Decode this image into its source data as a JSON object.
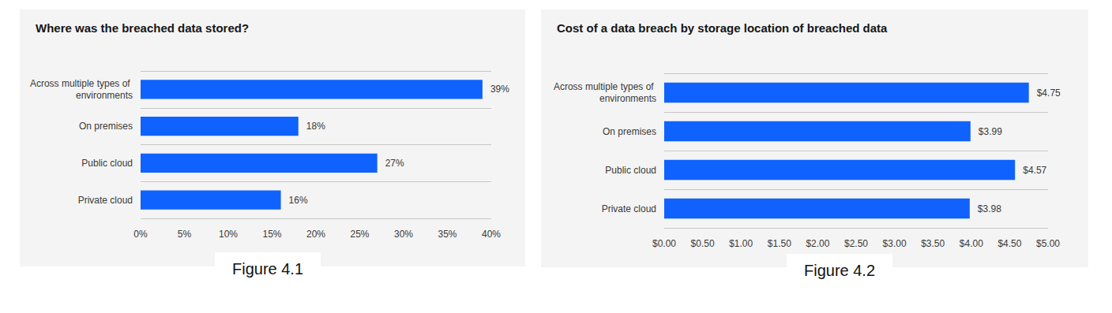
{
  "chart_data": [
    {
      "type": "bar",
      "title": "Where was the breached data stored?",
      "caption": "Figure 4.1",
      "orientation": "horizontal",
      "categories": [
        "Across multiple types of environments",
        "On premises",
        "Public cloud",
        "Private cloud"
      ],
      "values": [
        39,
        18,
        27,
        16
      ],
      "value_labels": [
        "39%",
        "18%",
        "27%",
        "16%"
      ],
      "data_labels": true,
      "color": "#0f62fe",
      "grid": true,
      "xlim": [
        0,
        40
      ],
      "xticks": [
        {
          "value": 0,
          "label": "0%"
        },
        {
          "value": 5,
          "label": "5%"
        },
        {
          "value": 10,
          "label": "10%"
        },
        {
          "value": 15,
          "label": "15%"
        },
        {
          "value": 20,
          "label": "20%"
        },
        {
          "value": 25,
          "label": "25%"
        },
        {
          "value": 30,
          "label": "30%"
        },
        {
          "value": 35,
          "label": "35%"
        },
        {
          "value": 40,
          "label": "40%"
        }
      ]
    },
    {
      "type": "bar",
      "title": "Cost of a data breach by storage location of breached data",
      "caption": "Figure 4.2",
      "orientation": "horizontal",
      "categories": [
        "Across multiple types of environments",
        "On premises",
        "Public cloud",
        "Private cloud"
      ],
      "values": [
        4.75,
        3.99,
        4.57,
        3.98
      ],
      "value_labels": [
        "$4.75",
        "$3.99",
        "$4.57",
        "$3.98"
      ],
      "data_labels": true,
      "color": "#0f62fe",
      "grid": true,
      "xlim": [
        0,
        5
      ],
      "xticks": [
        {
          "value": 0,
          "label": "$0.00"
        },
        {
          "value": 0.5,
          "label": "$0.50"
        },
        {
          "value": 1,
          "label": "$1.00"
        },
        {
          "value": 1.5,
          "label": "$1.50"
        },
        {
          "value": 2,
          "label": "$2.00"
        },
        {
          "value": 2.5,
          "label": "$2.50"
        },
        {
          "value": 3,
          "label": "$3.00"
        },
        {
          "value": 3.5,
          "label": "$3.50"
        },
        {
          "value": 4,
          "label": "$4.00"
        },
        {
          "value": 4.5,
          "label": "$4.50"
        },
        {
          "value": 5,
          "label": "$5.00"
        }
      ]
    }
  ]
}
